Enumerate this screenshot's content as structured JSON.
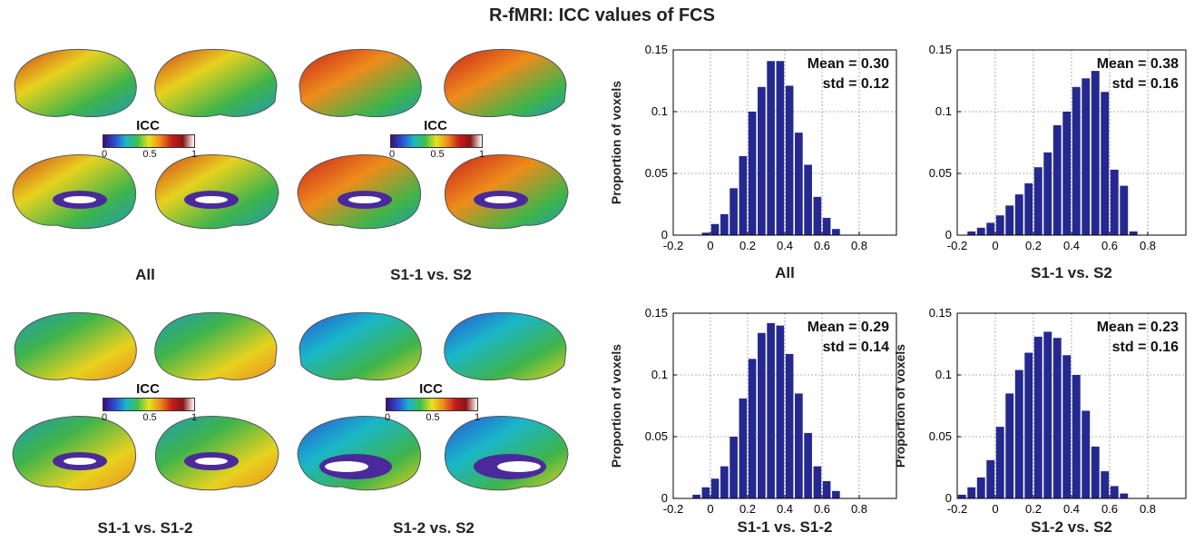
{
  "title": "R-fMRI: ICC values of FCS",
  "colorbar": {
    "title": "ICC",
    "ticks": [
      "0",
      "0.5",
      "1"
    ]
  },
  "brain_panels": [
    {
      "label": "All"
    },
    {
      "label": "S1-1 vs. S2"
    },
    {
      "label": "S1-1 vs. S1-2"
    },
    {
      "label": "S1-2 vs. S2"
    }
  ],
  "colors": {
    "bar": "#24288f",
    "axis": "#000000",
    "grid": "#9a9a9a"
  },
  "chart_data": [
    {
      "type": "bar",
      "xlabel": "All",
      "ylabel": "Proportion of voxels",
      "stats": [
        "Mean = 0.30",
        "std = 0.12"
      ],
      "xlim": [
        -0.2,
        1.0
      ],
      "ylim": [
        0,
        0.15
      ],
      "xticks": [
        "-0.2",
        "0",
        "0.2",
        "0.4",
        "0.6",
        "0.8"
      ],
      "yticks": [
        "0",
        "0.05",
        "0.1",
        "0.15"
      ],
      "grid": true,
      "bin_width": 0.05,
      "bin_centers": [
        -0.025,
        0.025,
        0.075,
        0.125,
        0.175,
        0.225,
        0.275,
        0.325,
        0.375,
        0.425,
        0.475,
        0.525,
        0.575,
        0.625,
        0.675
      ],
      "values": [
        0.002,
        0.009,
        0.017,
        0.038,
        0.064,
        0.1,
        0.12,
        0.141,
        0.141,
        0.121,
        0.083,
        0.057,
        0.031,
        0.014,
        0.005
      ]
    },
    {
      "type": "bar",
      "xlabel": "S1-1 vs. S2",
      "ylabel": "",
      "stats": [
        "Mean = 0.38",
        "std = 0.16"
      ],
      "xlim": [
        -0.2,
        1.0
      ],
      "ylim": [
        0,
        0.15
      ],
      "xticks": [
        "-0.2",
        "0",
        "0.2",
        "0.4",
        "0.6",
        "0.8"
      ],
      "yticks": [
        "0",
        "0.05",
        "0.1",
        "0.15"
      ],
      "grid": true,
      "bin_width": 0.05,
      "bin_centers": [
        -0.125,
        -0.075,
        -0.025,
        0.025,
        0.075,
        0.125,
        0.175,
        0.225,
        0.275,
        0.325,
        0.375,
        0.425,
        0.475,
        0.525,
        0.575,
        0.625,
        0.675,
        0.725
      ],
      "values": [
        0.003,
        0.006,
        0.01,
        0.016,
        0.024,
        0.033,
        0.042,
        0.055,
        0.067,
        0.089,
        0.1,
        0.12,
        0.127,
        0.133,
        0.116,
        0.053,
        0.04,
        0.003
      ]
    },
    {
      "type": "bar",
      "xlabel": "S1-1 vs. S1-2",
      "ylabel": "Proportion of voxels",
      "stats": [
        "Mean = 0.29",
        "std = 0.14"
      ],
      "xlim": [
        -0.2,
        1.0
      ],
      "ylim": [
        0,
        0.15
      ],
      "xticks": [
        "-0.2",
        "0",
        "0.2",
        "0.4",
        "0.6",
        "0.8"
      ],
      "yticks": [
        "0",
        "0.05",
        "0.1",
        "0.15"
      ],
      "grid": true,
      "bin_width": 0.05,
      "bin_centers": [
        -0.075,
        -0.025,
        0.025,
        0.075,
        0.125,
        0.175,
        0.225,
        0.275,
        0.325,
        0.375,
        0.425,
        0.475,
        0.525,
        0.575,
        0.625,
        0.675
      ],
      "values": [
        0.003,
        0.009,
        0.016,
        0.026,
        0.05,
        0.081,
        0.113,
        0.134,
        0.142,
        0.14,
        0.117,
        0.085,
        0.053,
        0.026,
        0.014,
        0.006
      ]
    },
    {
      "type": "bar",
      "xlabel": "S1-2 vs. S2",
      "ylabel": "Proportion of voxels",
      "stats": [
        "Mean = 0.23",
        "std = 0.16"
      ],
      "xlim": [
        -0.2,
        1.0
      ],
      "ylim": [
        0,
        0.15
      ],
      "xticks": [
        "-0.2",
        "0",
        "0.2",
        "0.4",
        "0.6",
        "0.8"
      ],
      "yticks": [
        "0",
        "0.05",
        "0.1",
        "0.15"
      ],
      "grid": true,
      "bin_width": 0.05,
      "bin_centers": [
        -0.175,
        -0.125,
        -0.075,
        -0.025,
        0.025,
        0.075,
        0.125,
        0.175,
        0.225,
        0.275,
        0.325,
        0.375,
        0.425,
        0.475,
        0.525,
        0.575,
        0.625,
        0.675
      ],
      "values": [
        0.003,
        0.009,
        0.017,
        0.031,
        0.058,
        0.085,
        0.104,
        0.118,
        0.131,
        0.135,
        0.13,
        0.116,
        0.1,
        0.071,
        0.042,
        0.022,
        0.01,
        0.004
      ]
    }
  ]
}
